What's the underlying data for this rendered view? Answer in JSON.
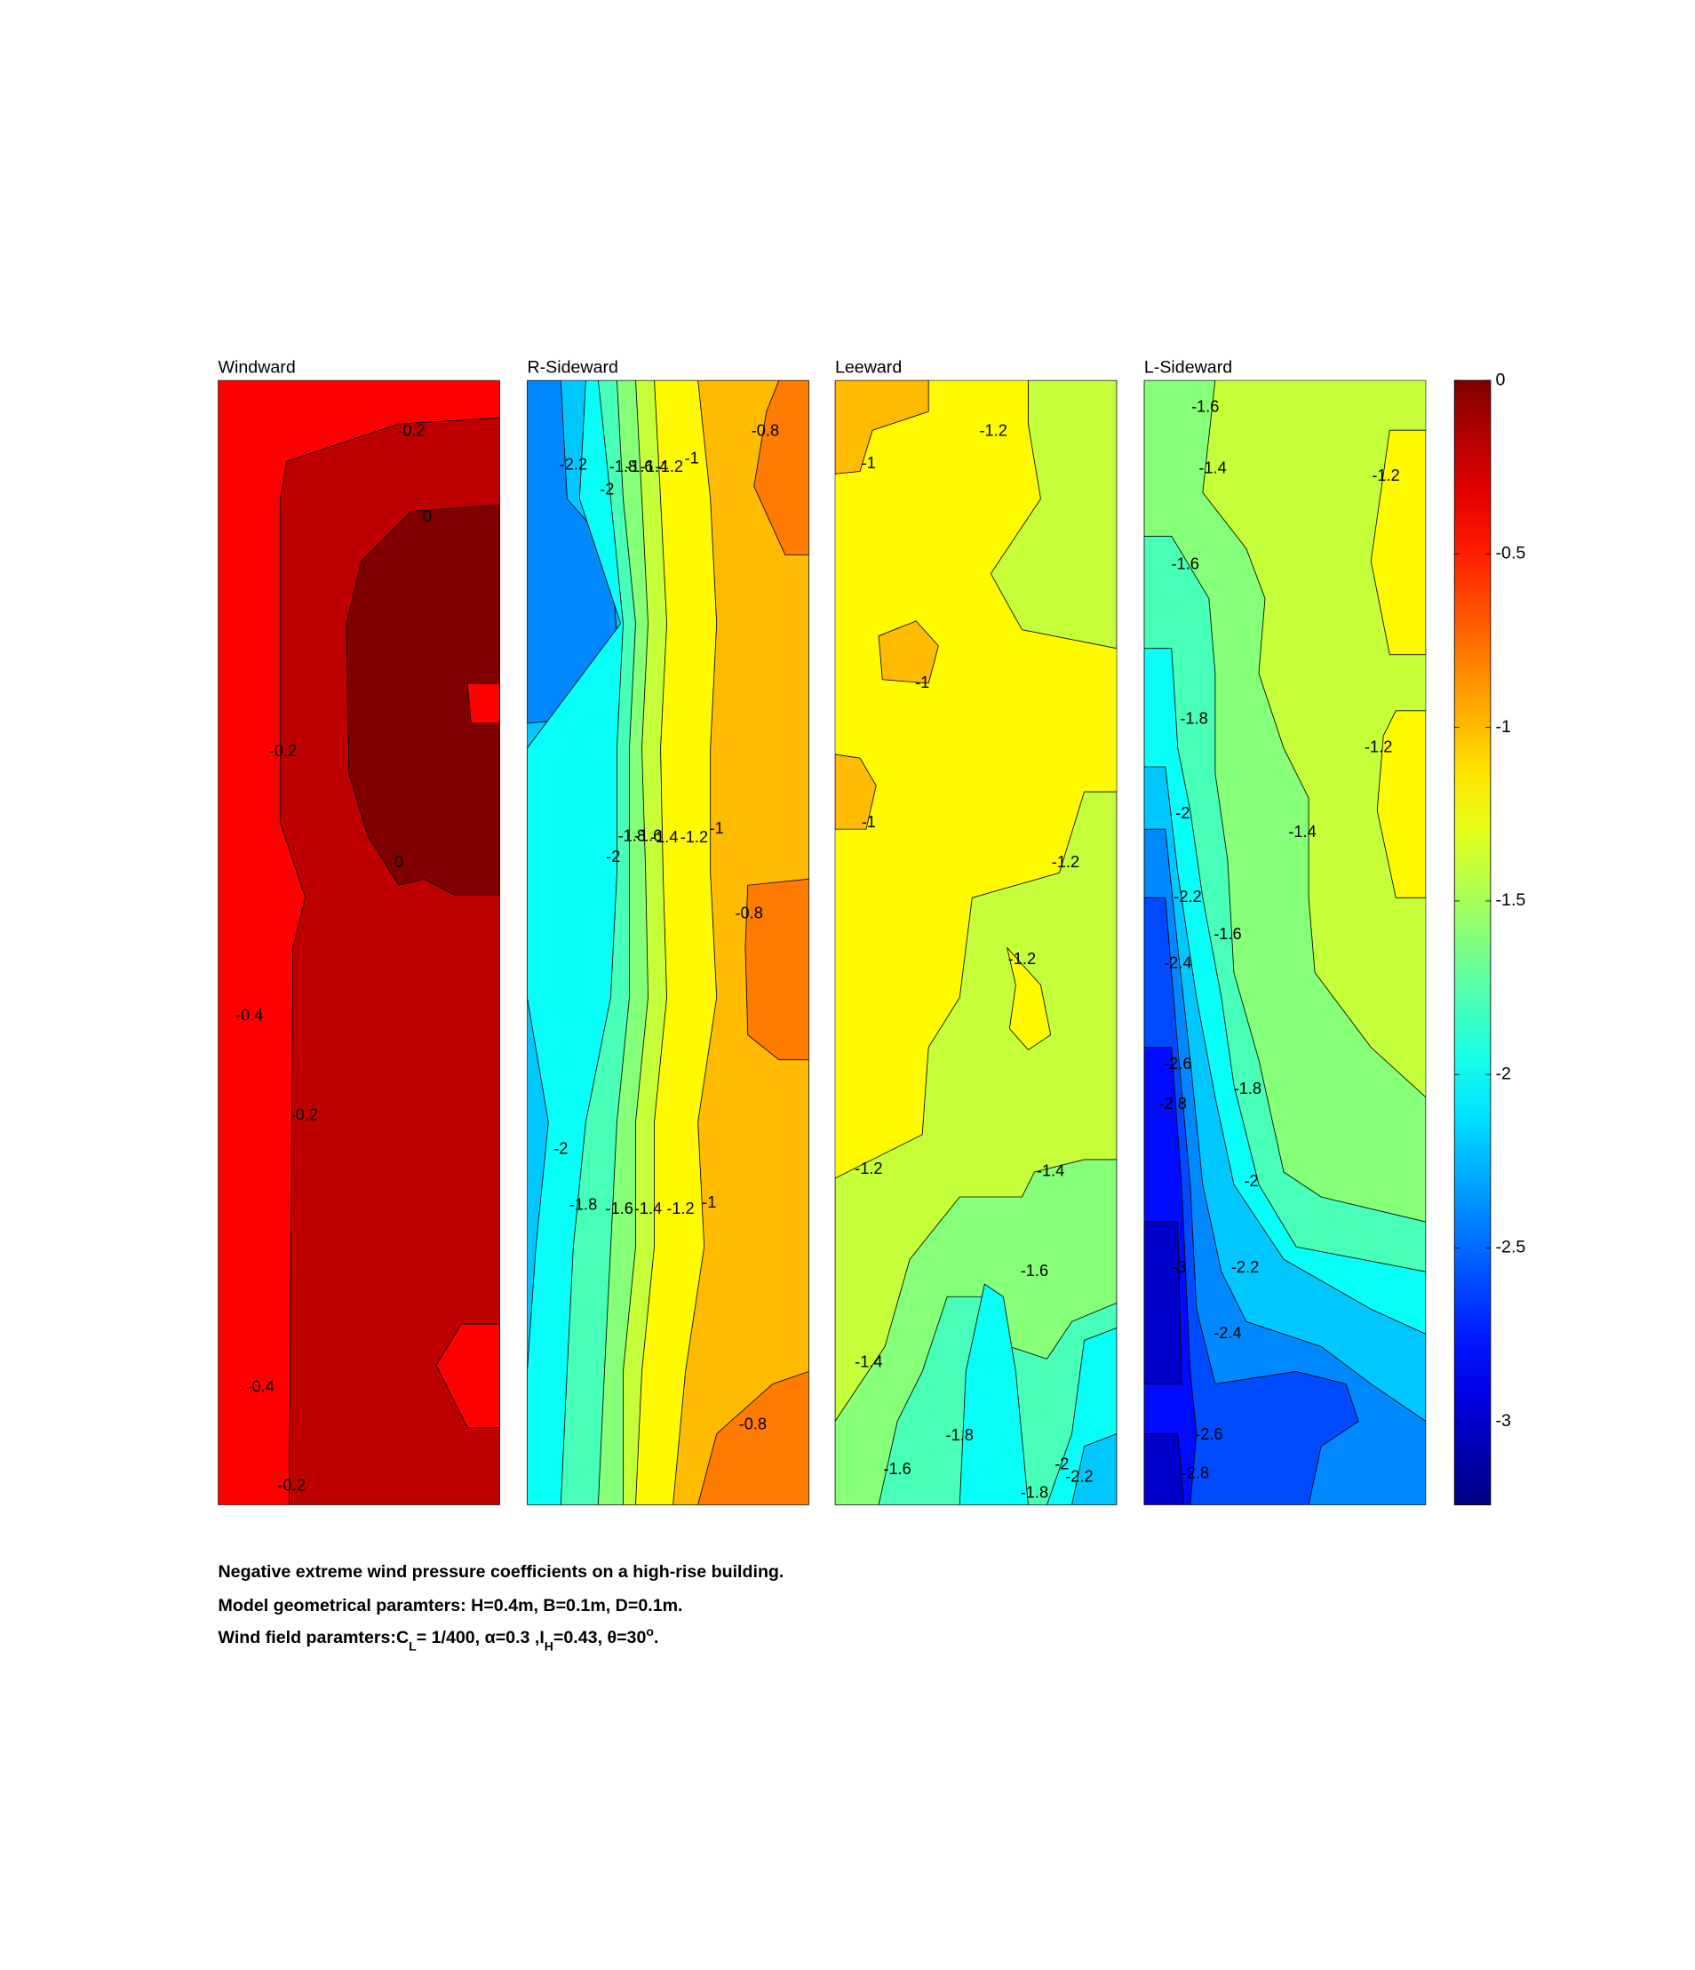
{
  "chart_data": [
    {
      "type": "contour",
      "title": "Windward",
      "colormap": "jet",
      "fills": [
        -0.4,
        -0.2,
        0,
        -0.4,
        -0.4
      ],
      "contour_labels": [
        -0.2,
        0,
        -0.2,
        0,
        -0.4,
        -0.2,
        -0.4,
        -0.2
      ]
    },
    {
      "type": "contour",
      "title": "R-Sideward",
      "colormap": "jet",
      "fills": [
        -2.2,
        -2.4,
        -2,
        -1.8,
        -1.6,
        -1.4,
        -1.2,
        -1,
        -0.8,
        -0.8,
        -0.8
      ],
      "contour_labels": [
        -0.8,
        -2.2,
        -2,
        -1.8,
        -1.6,
        -1.4,
        -1.2,
        -1,
        -1.8,
        -1.6,
        -1.4,
        -1.2,
        -1,
        -2,
        -0.8,
        -2,
        -1.8,
        -1.6,
        -1.4,
        -1.2,
        -1,
        -0.8
      ]
    },
    {
      "type": "contour",
      "title": "Leeward",
      "colormap": "jet",
      "fills": [
        -1.2,
        -1,
        -1,
        -1,
        -1.4,
        -1.4,
        -1.2,
        -1.6,
        -1.8,
        -2,
        -2,
        -2.2
      ],
      "contour_labels": [
        -1.2,
        -1,
        -1,
        -1,
        -1.2,
        -1.2,
        -1.2,
        -1.4,
        -1.6,
        -1.4,
        -1.8,
        -1.6,
        -2,
        -2.2,
        -1.8
      ]
    },
    {
      "type": "contour",
      "title": "L-Sideward",
      "colormap": "jet",
      "fills": [
        -1.4,
        -1.2,
        -1.2,
        -1.6,
        -1.8,
        -2,
        -2.2,
        -2.4,
        -2.6,
        -2.8,
        -3,
        -3
      ],
      "contour_labels": [
        -1.6,
        -1.4,
        -1.2,
        -1.6,
        -1.8,
        -1.2,
        -2,
        -1.4,
        -2.2,
        -1.6,
        -2.4,
        -2.6,
        -2.8,
        -1.8,
        -2,
        -3,
        -2.2,
        -2.4,
        -2.6,
        -2.8
      ]
    }
  ],
  "colorbar": {
    "colormap": "jet",
    "clim": [
      -3.24,
      0
    ],
    "ticks": [
      0,
      -0.5,
      -1,
      -1.5,
      -2,
      -2.5,
      -3
    ]
  },
  "caption": {
    "lines": [
      "Negative extreme wind pressure coefficients on a high-rise building.",
      "Model geometrical paramters: H=0.4m, B=0.1m, D=0.1m."
    ],
    "wind_line": [
      "Wind field paramters:C",
      "L",
      "= 1/400, α=0.3 ,I",
      "H",
      "=0.43, θ=30",
      "o",
      "."
    ]
  }
}
